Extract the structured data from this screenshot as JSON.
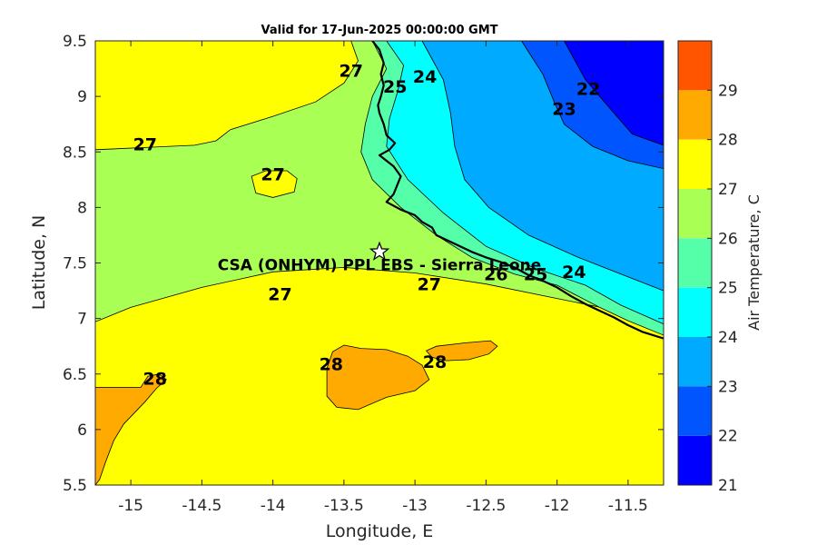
{
  "title": "Valid for 17-Jun-2025 00:00:00 GMT",
  "map": {
    "xlabel": "Longitude, E",
    "ylabel": "Latitude, N",
    "xlim": [
      -15.25,
      -11.25
    ],
    "ylim": [
      5.5,
      9.5
    ],
    "xticks": [
      {
        "v": -15,
        "label": "-15"
      },
      {
        "v": -14.5,
        "label": "-14.5"
      },
      {
        "v": -14,
        "label": "-14"
      },
      {
        "v": -13.5,
        "label": "-13.5"
      },
      {
        "v": -13,
        "label": "-13"
      },
      {
        "v": -12.5,
        "label": "-12.5"
      },
      {
        "v": -12,
        "label": "-12"
      },
      {
        "v": -11.5,
        "label": "-11.5"
      }
    ],
    "yticks": [
      {
        "v": 5.5,
        "label": "5.5"
      },
      {
        "v": 6,
        "label": "6"
      },
      {
        "v": 6.5,
        "label": "6.5"
      },
      {
        "v": 7,
        "label": "7"
      },
      {
        "v": 7.5,
        "label": "7.5"
      },
      {
        "v": 8,
        "label": "8"
      },
      {
        "v": 8.5,
        "label": "8.5"
      },
      {
        "v": 9,
        "label": "9"
      },
      {
        "v": 9.5,
        "label": "9.5"
      }
    ],
    "site": {
      "name": "CSA (ONHYM) PPL EBS - Sierra Leone",
      "lon": -13.25,
      "lat": 7.6
    }
  },
  "colorbar": {
    "label": "Air Temperature, C",
    "bands": [
      {
        "from": 21,
        "to": 22,
        "color": "#0000ff"
      },
      {
        "from": 22,
        "to": 23,
        "color": "#0055ff"
      },
      {
        "from": 23,
        "to": 24,
        "color": "#00aaff"
      },
      {
        "from": 24,
        "to": 25,
        "color": "#00ffff"
      },
      {
        "from": 25,
        "to": 26,
        "color": "#55ffaa"
      },
      {
        "from": 26,
        "to": 27,
        "color": "#aaff55"
      },
      {
        "from": 27,
        "to": 28,
        "color": "#ffff00"
      },
      {
        "from": 28,
        "to": 29,
        "color": "#ffaa00"
      },
      {
        "from": 29,
        "to": 30,
        "color": "#ff5500"
      }
    ],
    "ticks": [
      {
        "v": 21,
        "label": "21"
      },
      {
        "v": 22,
        "label": "22"
      },
      {
        "v": 23,
        "label": "23"
      },
      {
        "v": 24,
        "label": "24"
      },
      {
        "v": 25,
        "label": "25"
      },
      {
        "v": 26,
        "label": "26"
      },
      {
        "v": 27,
        "label": "27"
      },
      {
        "v": 28,
        "label": "28"
      },
      {
        "v": 29,
        "label": "29"
      }
    ]
  },
  "contour_labels": [
    {
      "text": "27",
      "lon": -13.45,
      "lat": 9.22
    },
    {
      "text": "24",
      "lon": -12.93,
      "lat": 9.17
    },
    {
      "text": "25",
      "lon": -13.14,
      "lat": 9.08
    },
    {
      "text": "22",
      "lon": -11.78,
      "lat": 9.06
    },
    {
      "text": "23",
      "lon": -11.95,
      "lat": 8.88
    },
    {
      "text": "27",
      "lon": -14.9,
      "lat": 8.56
    },
    {
      "text": "27",
      "lon": -14.0,
      "lat": 8.29
    },
    {
      "text": "27",
      "lon": -13.95,
      "lat": 7.21
    },
    {
      "text": "27",
      "lon": -12.9,
      "lat": 7.3
    },
    {
      "text": "26",
      "lon": -12.43,
      "lat": 7.39
    },
    {
      "text": "25",
      "lon": -12.15,
      "lat": 7.39
    },
    {
      "text": "24",
      "lon": -11.88,
      "lat": 7.41
    },
    {
      "text": "28",
      "lon": -14.83,
      "lat": 6.45
    },
    {
      "text": "28",
      "lon": -13.59,
      "lat": 6.58
    },
    {
      "text": "28",
      "lon": -12.86,
      "lat": 6.6
    }
  ],
  "chart_data": {
    "type": "heatmap",
    "title": "Valid for 17-Jun-2025 00:00:00 GMT",
    "xlabel": "Longitude, E",
    "ylabel": "Latitude, N",
    "xlim": [
      -15.25,
      -11.25
    ],
    "ylim": [
      5.5,
      9.5
    ],
    "colorbar_label": "Air Temperature, C",
    "colorbar_range": [
      21,
      29
    ],
    "contour_levels": [
      22,
      23,
      24,
      25,
      26,
      27,
      28
    ],
    "regions": [
      {
        "range": "27-28",
        "color": "#ffff00",
        "polygon": [
          [
            -15.25,
            5.5
          ],
          [
            -11.25,
            5.5
          ],
          [
            -11.25,
            9.5
          ],
          [
            -15.25,
            9.5
          ]
        ]
      },
      {
        "range": "26-27",
        "color": "#aaff55",
        "polygon": [
          [
            -15.25,
            6.97
          ],
          [
            -15.0,
            7.1
          ],
          [
            -14.5,
            7.28
          ],
          [
            -14.0,
            7.42
          ],
          [
            -13.5,
            7.46
          ],
          [
            -13.0,
            7.41
          ],
          [
            -12.5,
            7.31
          ],
          [
            -12.0,
            7.18
          ],
          [
            -11.5,
            7.05
          ],
          [
            -11.25,
            6.95
          ],
          [
            -11.25,
            9.5
          ],
          [
            -13.45,
            9.5
          ],
          [
            -13.4,
            9.32
          ],
          [
            -13.5,
            9.12
          ],
          [
            -13.7,
            8.95
          ],
          [
            -14.0,
            8.82
          ],
          [
            -14.3,
            8.7
          ],
          [
            -14.4,
            8.6
          ],
          [
            -14.55,
            8.56
          ],
          [
            -14.9,
            8.54
          ],
          [
            -15.25,
            8.52
          ]
        ]
      },
      {
        "range": "27-28",
        "color": "#ffff00",
        "polygon": [
          [
            -14.15,
            8.28
          ],
          [
            -14.05,
            8.33
          ],
          [
            -13.9,
            8.33
          ],
          [
            -13.83,
            8.26
          ],
          [
            -13.85,
            8.14
          ],
          [
            -14.0,
            8.09
          ],
          [
            -14.12,
            8.13
          ]
        ]
      },
      {
        "range": "25-26",
        "color": "#55ffaa",
        "polygon": [
          [
            -13.3,
            9.5
          ],
          [
            -13.2,
            9.25
          ],
          [
            -13.3,
            9.0
          ],
          [
            -13.35,
            8.75
          ],
          [
            -13.38,
            8.5
          ],
          [
            -13.3,
            8.25
          ],
          [
            -13.1,
            8.0
          ],
          [
            -12.85,
            7.75
          ],
          [
            -12.6,
            7.55
          ],
          [
            -12.3,
            7.4
          ],
          [
            -12.0,
            7.3
          ],
          [
            -11.7,
            7.1
          ],
          [
            -11.5,
            6.98
          ],
          [
            -11.25,
            6.85
          ],
          [
            -11.25,
            9.5
          ]
        ]
      },
      {
        "range": "24-25",
        "color": "#00ffff",
        "polygon": [
          [
            -13.2,
            9.5
          ],
          [
            -13.08,
            9.28
          ],
          [
            -13.12,
            9.05
          ],
          [
            -13.18,
            8.8
          ],
          [
            -13.2,
            8.55
          ],
          [
            -13.05,
            8.25
          ],
          [
            -12.8,
            7.95
          ],
          [
            -12.5,
            7.65
          ],
          [
            -12.15,
            7.45
          ],
          [
            -11.8,
            7.3
          ],
          [
            -11.55,
            7.12
          ],
          [
            -11.25,
            6.95
          ],
          [
            -11.25,
            9.5
          ]
        ]
      },
      {
        "range": "23-24",
        "color": "#00aaff",
        "polygon": [
          [
            -12.95,
            9.5
          ],
          [
            -12.8,
            9.15
          ],
          [
            -12.75,
            8.85
          ],
          [
            -12.72,
            8.55
          ],
          [
            -12.65,
            8.25
          ],
          [
            -12.48,
            8.0
          ],
          [
            -12.2,
            7.75
          ],
          [
            -11.85,
            7.55
          ],
          [
            -11.55,
            7.4
          ],
          [
            -11.25,
            7.25
          ],
          [
            -11.25,
            9.5
          ]
        ]
      },
      {
        "range": "22-23",
        "color": "#0055ff",
        "polygon": [
          [
            -12.25,
            9.5
          ],
          [
            -12.1,
            9.2
          ],
          [
            -12.02,
            8.95
          ],
          [
            -11.95,
            8.75
          ],
          [
            -11.75,
            8.55
          ],
          [
            -11.5,
            8.42
          ],
          [
            -11.25,
            8.35
          ],
          [
            -11.25,
            9.5
          ]
        ]
      },
      {
        "range": "21-22",
        "color": "#0000ff",
        "polygon": [
          [
            -11.95,
            9.5
          ],
          [
            -11.8,
            9.15
          ],
          [
            -11.62,
            8.88
          ],
          [
            -11.47,
            8.66
          ],
          [
            -11.25,
            8.56
          ],
          [
            -11.25,
            9.5
          ]
        ]
      },
      {
        "range": "28-29",
        "color": "#ffaa00",
        "polygon": [
          [
            -15.25,
            6.38
          ],
          [
            -14.93,
            6.38
          ],
          [
            -14.88,
            6.48
          ],
          [
            -14.8,
            6.5
          ],
          [
            -14.75,
            6.45
          ],
          [
            -14.82,
            6.37
          ],
          [
            -14.9,
            6.25
          ],
          [
            -15.05,
            6.05
          ],
          [
            -15.12,
            5.9
          ],
          [
            -15.18,
            5.7
          ],
          [
            -15.22,
            5.55
          ],
          [
            -15.25,
            5.5
          ]
        ]
      },
      {
        "range": "28-29",
        "color": "#ffaa00",
        "polygon": [
          [
            -13.62,
            6.55
          ],
          [
            -13.58,
            6.7
          ],
          [
            -13.5,
            6.76
          ],
          [
            -13.38,
            6.73
          ],
          [
            -13.2,
            6.72
          ],
          [
            -13.05,
            6.66
          ],
          [
            -12.95,
            6.58
          ],
          [
            -12.9,
            6.45
          ],
          [
            -13.0,
            6.35
          ],
          [
            -13.2,
            6.29
          ],
          [
            -13.4,
            6.18
          ],
          [
            -13.55,
            6.2
          ],
          [
            -13.62,
            6.3
          ]
        ]
      },
      {
        "range": "28-29",
        "color": "#ffaa00",
        "polygon": [
          [
            -12.92,
            6.71
          ],
          [
            -12.85,
            6.75
          ],
          [
            -12.65,
            6.78
          ],
          [
            -12.47,
            6.8
          ],
          [
            -12.42,
            6.75
          ],
          [
            -12.48,
            6.68
          ],
          [
            -12.62,
            6.63
          ],
          [
            -12.78,
            6.62
          ],
          [
            -12.88,
            6.65
          ]
        ]
      }
    ],
    "coastline": [
      [
        -13.3,
        9.5
      ],
      [
        -13.25,
        9.42
      ],
      [
        -13.22,
        9.3
      ],
      [
        -13.24,
        9.2
      ],
      [
        -13.22,
        9.1
      ],
      [
        -13.24,
        9.0
      ],
      [
        -13.26,
        8.92
      ],
      [
        -13.25,
        8.85
      ],
      [
        -13.22,
        8.75
      ],
      [
        -13.2,
        8.65
      ],
      [
        -13.14,
        8.58
      ],
      [
        -13.18,
        8.52
      ],
      [
        -13.25,
        8.47
      ],
      [
        -13.2,
        8.42
      ],
      [
        -13.15,
        8.37
      ],
      [
        -13.1,
        8.28
      ],
      [
        -13.15,
        8.12
      ],
      [
        -13.2,
        8.05
      ],
      [
        -13.1,
        7.98
      ],
      [
        -13.0,
        7.93
      ],
      [
        -12.95,
        7.87
      ],
      [
        -12.88,
        7.82
      ],
      [
        -12.85,
        7.75
      ],
      [
        -12.7,
        7.66
      ],
      [
        -12.6,
        7.6
      ],
      [
        -12.5,
        7.55
      ],
      [
        -12.4,
        7.51
      ],
      [
        -12.3,
        7.46
      ],
      [
        -12.2,
        7.39
      ],
      [
        -12.1,
        7.34
      ],
      [
        -12.0,
        7.28
      ],
      [
        -11.9,
        7.2
      ],
      [
        -11.8,
        7.13
      ],
      [
        -11.7,
        7.07
      ],
      [
        -11.6,
        7.01
      ],
      [
        -11.5,
        6.94
      ],
      [
        -11.4,
        6.88
      ],
      [
        -11.25,
        6.82
      ]
    ]
  }
}
